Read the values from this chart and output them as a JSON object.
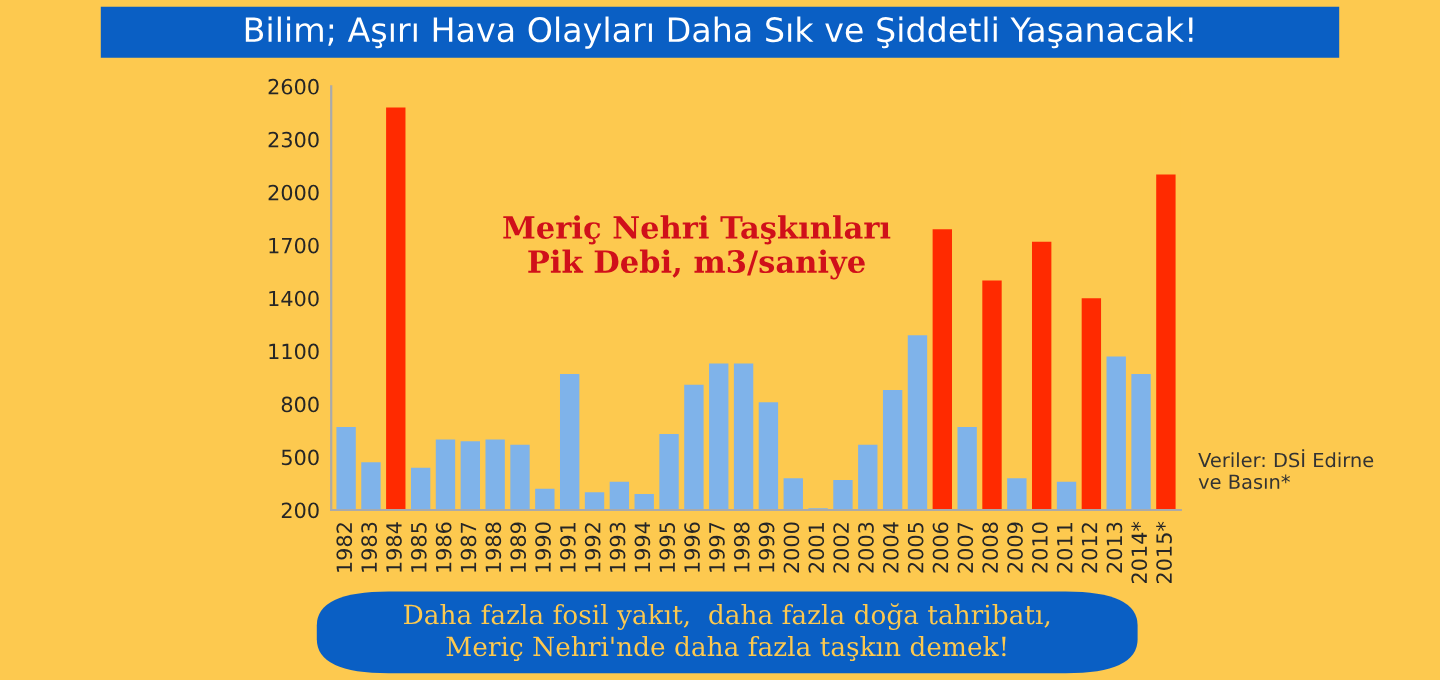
{
  "chart_data": {
    "type": "bar",
    "title": "Bilim; Aşırı Hava Olayları Daha Sık ve Şiddetli Yaşanacak!",
    "categories": [
      "1982",
      "1983",
      "1984",
      "1985",
      "1986",
      "1987",
      "1988",
      "1989",
      "1990",
      "1991",
      "1992",
      "1993",
      "1994",
      "1995",
      "1996",
      "1997",
      "1998",
      "1999",
      "2000",
      "2001",
      "2002",
      "2003",
      "2004",
      "2005",
      "2006",
      "2007",
      "2008",
      "2009",
      "2010",
      "2011",
      "2012",
      "2013",
      "2014*",
      "2015*"
    ],
    "values": [
      670,
      470,
      2480,
      440,
      600,
      590,
      600,
      570,
      320,
      970,
      300,
      360,
      290,
      630,
      910,
      1030,
      1030,
      810,
      380,
      210,
      370,
      570,
      880,
      1190,
      1790,
      670,
      1500,
      380,
      1720,
      360,
      1400,
      1070,
      970,
      2100
    ],
    "colors": [
      "#7fb3ea",
      "#7fb3ea",
      "#ff2a00",
      "#7fb3ea",
      "#7fb3ea",
      "#7fb3ea",
      "#7fb3ea",
      "#7fb3ea",
      "#7fb3ea",
      "#7fb3ea",
      "#7fb3ea",
      "#7fb3ea",
      "#7fb3ea",
      "#7fb3ea",
      "#7fb3ea",
      "#7fb3ea",
      "#7fb3ea",
      "#7fb3ea",
      "#7fb3ea",
      "#7fb3ea",
      "#7fb3ea",
      "#7fb3ea",
      "#7fb3ea",
      "#7fb3ea",
      "#ff2a00",
      "#7fb3ea",
      "#ff2a00",
      "#7fb3ea",
      "#ff2a00",
      "#7fb3ea",
      "#ff2a00",
      "#7fb3ea",
      "#7fb3ea",
      "#ff2a00"
    ],
    "ylim": [
      200,
      2600
    ],
    "yticks": [
      200,
      500,
      800,
      1100,
      1400,
      1700,
      2000,
      2300,
      2600
    ],
    "annotations": [
      "Meriç Nehri Taşkınları\nPik Debi, m3/saniye",
      "Veriler: DSİ Edirne\nve Basın*",
      "Daha fazla fosil yakıt,  daha fazla doğa tahribatı,\nMeriç Nehri'nde daha fazla taşkın demek!"
    ],
    "grid": false,
    "legend": false
  }
}
